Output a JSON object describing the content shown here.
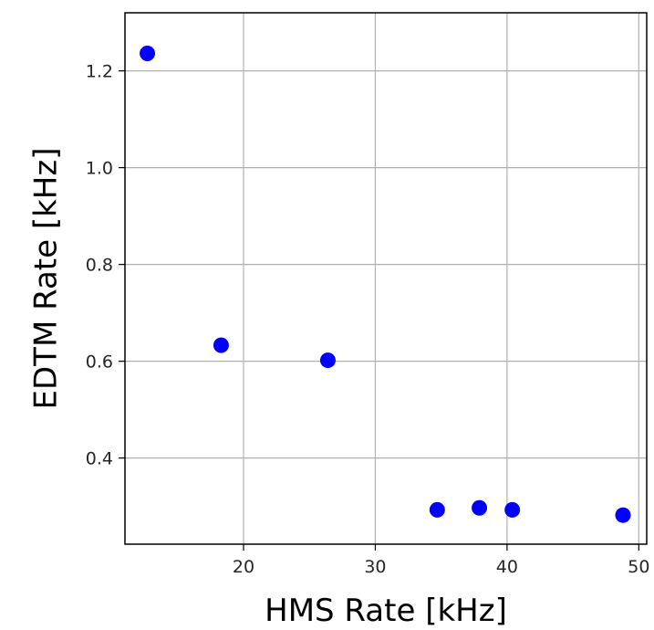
{
  "chart_data": {
    "type": "scatter",
    "title": "",
    "xlabel": "HMS Rate [kHz]",
    "ylabel": "EDTM Rate [kHz]",
    "xlim": [
      11.0,
      50.6
    ],
    "ylim": [
      0.222,
      1.32
    ],
    "xticks": [
      20,
      30,
      40,
      50
    ],
    "xtick_labels": [
      "20",
      "30",
      "40",
      "50"
    ],
    "yticks": [
      0.4,
      0.6,
      0.8,
      1.0,
      1.2
    ],
    "ytick_labels": [
      "0.4",
      "0.6",
      "0.8",
      "1.0",
      "1.2"
    ],
    "grid": true,
    "legend": "none",
    "series": [
      {
        "color": "#0000ff",
        "points": [
          {
            "x": 12.7,
            "y": 1.236
          },
          {
            "x": 18.3,
            "y": 0.633
          },
          {
            "x": 26.4,
            "y": 0.602
          },
          {
            "x": 34.7,
            "y": 0.293
          },
          {
            "x": 37.9,
            "y": 0.297
          },
          {
            "x": 40.4,
            "y": 0.293
          },
          {
            "x": 48.8,
            "y": 0.282
          }
        ]
      }
    ]
  }
}
